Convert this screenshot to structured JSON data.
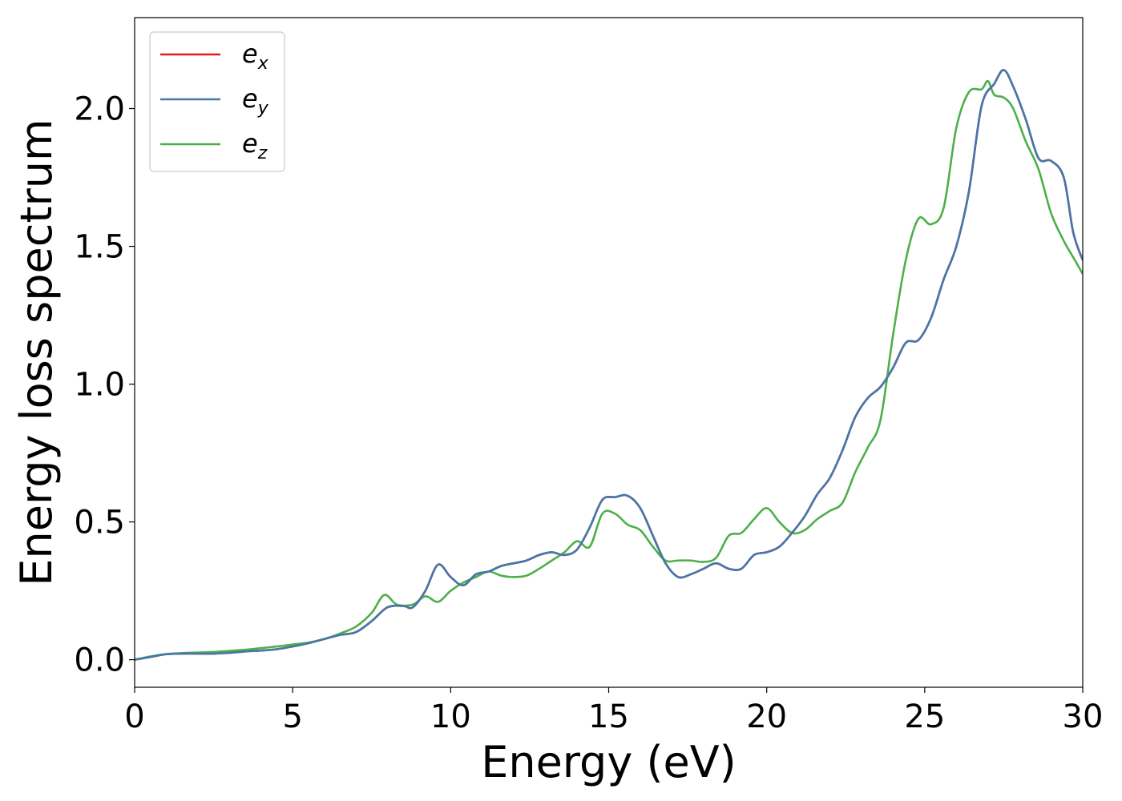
{
  "chart_data": {
    "type": "line",
    "xlabel": "Energy (eV)",
    "ylabel": "Energy loss spectrum",
    "xlim": [
      0,
      30
    ],
    "ylim": [
      -0.1,
      2.33
    ],
    "xticks": [
      0,
      5,
      10,
      15,
      20,
      25,
      30
    ],
    "xtick_labels": [
      "0",
      "5",
      "10",
      "15",
      "20",
      "25",
      "30"
    ],
    "yticks": [
      0.0,
      0.5,
      1.0,
      1.5,
      2.0
    ],
    "ytick_labels": [
      "0.0",
      "0.5",
      "1.0",
      "1.5",
      "2.0"
    ],
    "grid": false,
    "legend_position": "top-left",
    "series": [
      {
        "name": "e_x",
        "label_base": "e",
        "label_sub": "x",
        "color": "#e41a1c",
        "x": [
          0,
          0.5,
          1,
          1.5,
          2,
          2.5,
          3,
          3.5,
          4,
          4.5,
          5,
          5.5,
          6,
          6.5,
          7,
          7.5,
          8,
          8.5,
          8.8,
          9.2,
          9.6,
          10,
          10.4,
          10.8,
          11.2,
          11.6,
          12,
          12.4,
          12.8,
          13.2,
          13.6,
          14,
          14.4,
          14.8,
          15.2,
          15.6,
          16,
          16.4,
          16.8,
          17.2,
          17.6,
          18,
          18.4,
          18.8,
          19.2,
          19.6,
          20,
          20.4,
          20.8,
          21.2,
          21.6,
          22,
          22.4,
          22.8,
          23.2,
          23.6,
          24,
          24.4,
          24.8,
          25.2,
          25.6,
          26,
          26.4,
          26.8,
          27.2,
          27.5,
          27.8,
          28.2,
          28.6,
          29,
          29.4,
          29.7,
          30
        ],
        "y": [
          0.0,
          0.01,
          0.02,
          0.022,
          0.022,
          0.022,
          0.025,
          0.03,
          0.033,
          0.038,
          0.048,
          0.06,
          0.075,
          0.09,
          0.1,
          0.14,
          0.19,
          0.195,
          0.19,
          0.25,
          0.345,
          0.3,
          0.27,
          0.31,
          0.32,
          0.34,
          0.35,
          0.36,
          0.38,
          0.39,
          0.38,
          0.4,
          0.48,
          0.58,
          0.59,
          0.595,
          0.55,
          0.45,
          0.35,
          0.3,
          0.31,
          0.33,
          0.35,
          0.33,
          0.33,
          0.38,
          0.39,
          0.41,
          0.46,
          0.52,
          0.6,
          0.66,
          0.76,
          0.88,
          0.95,
          0.99,
          1.06,
          1.15,
          1.16,
          1.24,
          1.38,
          1.5,
          1.7,
          2.01,
          2.09,
          2.14,
          2.08,
          1.96,
          1.82,
          1.81,
          1.75,
          1.55,
          1.45
        ]
      },
      {
        "name": "e_y",
        "label_base": "e",
        "label_sub": "y",
        "color": "#4477aa",
        "x": [
          0,
          0.5,
          1,
          1.5,
          2,
          2.5,
          3,
          3.5,
          4,
          4.5,
          5,
          5.5,
          6,
          6.5,
          7,
          7.5,
          8,
          8.5,
          8.8,
          9.2,
          9.6,
          10,
          10.4,
          10.8,
          11.2,
          11.6,
          12,
          12.4,
          12.8,
          13.2,
          13.6,
          14,
          14.4,
          14.8,
          15.2,
          15.6,
          16,
          16.4,
          16.8,
          17.2,
          17.6,
          18,
          18.4,
          18.8,
          19.2,
          19.6,
          20,
          20.4,
          20.8,
          21.2,
          21.6,
          22,
          22.4,
          22.8,
          23.2,
          23.6,
          24,
          24.4,
          24.8,
          25.2,
          25.6,
          26,
          26.4,
          26.8,
          27.2,
          27.5,
          27.8,
          28.2,
          28.6,
          29,
          29.4,
          29.7,
          30
        ],
        "y": [
          0.0,
          0.01,
          0.02,
          0.022,
          0.022,
          0.022,
          0.025,
          0.03,
          0.033,
          0.038,
          0.048,
          0.06,
          0.075,
          0.09,
          0.1,
          0.14,
          0.19,
          0.195,
          0.19,
          0.25,
          0.345,
          0.3,
          0.27,
          0.31,
          0.32,
          0.34,
          0.35,
          0.36,
          0.38,
          0.39,
          0.38,
          0.4,
          0.48,
          0.58,
          0.59,
          0.595,
          0.55,
          0.45,
          0.35,
          0.3,
          0.31,
          0.33,
          0.35,
          0.33,
          0.33,
          0.38,
          0.39,
          0.41,
          0.46,
          0.52,
          0.6,
          0.66,
          0.76,
          0.88,
          0.95,
          0.99,
          1.06,
          1.15,
          1.16,
          1.24,
          1.38,
          1.5,
          1.7,
          2.01,
          2.09,
          2.14,
          2.08,
          1.96,
          1.82,
          1.81,
          1.75,
          1.55,
          1.45
        ]
      },
      {
        "name": "e_z",
        "label_base": "e",
        "label_sub": "z",
        "color": "#4daf4a",
        "x": [
          0,
          0.5,
          1,
          1.5,
          2,
          2.5,
          3,
          3.5,
          4,
          4.5,
          5,
          5.5,
          6,
          6.5,
          7,
          7.5,
          7.9,
          8.3,
          8.8,
          9.2,
          9.6,
          10,
          10.4,
          10.8,
          11.2,
          11.6,
          12,
          12.4,
          12.8,
          13.2,
          13.6,
          14,
          14.4,
          14.8,
          15.2,
          15.6,
          16,
          16.4,
          16.8,
          17.2,
          17.6,
          18,
          18.4,
          18.8,
          19.2,
          19.6,
          20,
          20.4,
          20.8,
          21.2,
          21.6,
          22,
          22.4,
          22.8,
          23.2,
          23.6,
          24,
          24.4,
          24.8,
          25.2,
          25.6,
          26,
          26.4,
          26.8,
          27,
          27.2,
          27.5,
          27.8,
          28.2,
          28.6,
          29,
          29.4,
          29.7,
          30
        ],
        "y": [
          0.0,
          0.012,
          0.02,
          0.024,
          0.026,
          0.028,
          0.032,
          0.036,
          0.042,
          0.048,
          0.055,
          0.062,
          0.075,
          0.095,
          0.12,
          0.17,
          0.235,
          0.2,
          0.2,
          0.23,
          0.21,
          0.25,
          0.28,
          0.3,
          0.32,
          0.305,
          0.3,
          0.305,
          0.33,
          0.36,
          0.39,
          0.43,
          0.41,
          0.53,
          0.53,
          0.49,
          0.47,
          0.41,
          0.36,
          0.36,
          0.36,
          0.355,
          0.37,
          0.45,
          0.46,
          0.51,
          0.55,
          0.5,
          0.46,
          0.47,
          0.51,
          0.54,
          0.57,
          0.68,
          0.77,
          0.87,
          1.18,
          1.45,
          1.6,
          1.58,
          1.64,
          1.93,
          2.06,
          2.07,
          2.1,
          2.05,
          2.04,
          2.0,
          1.88,
          1.78,
          1.62,
          1.52,
          1.46,
          1.4
        ]
      }
    ]
  }
}
